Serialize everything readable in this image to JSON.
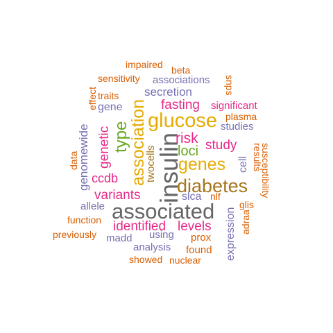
{
  "colors": {
    "orange": "#d95f02",
    "purple": "#7570b3",
    "magenta": "#e7298a",
    "green": "#66a61e",
    "gold": "#e6ab02",
    "brown": "#a6761d",
    "gray": "#666666"
  },
  "words": [
    {
      "text": "insulin",
      "color": "gray"
    },
    {
      "text": "associated",
      "color": "gray"
    },
    {
      "text": "diabetes",
      "color": "brown"
    },
    {
      "text": "glucose",
      "color": "gold"
    },
    {
      "text": "genes",
      "color": "gold"
    },
    {
      "text": "association",
      "color": "gold"
    },
    {
      "text": "type",
      "color": "green"
    },
    {
      "text": "loci",
      "color": "green"
    },
    {
      "text": "risk",
      "color": "magenta"
    },
    {
      "text": "fasting",
      "color": "magenta"
    },
    {
      "text": "variants",
      "color": "magenta"
    },
    {
      "text": "identified",
      "color": "magenta"
    },
    {
      "text": "levels",
      "color": "magenta"
    },
    {
      "text": "study",
      "color": "magenta"
    },
    {
      "text": "genetic",
      "color": "magenta"
    },
    {
      "text": "ccdb",
      "color": "magenta"
    },
    {
      "text": "significant",
      "color": "magenta"
    },
    {
      "text": "secretion",
      "color": "purple"
    },
    {
      "text": "associations",
      "color": "purple"
    },
    {
      "text": "gene",
      "color": "purple"
    },
    {
      "text": "studies",
      "color": "purple"
    },
    {
      "text": "genomewide",
      "color": "purple"
    },
    {
      "text": "allele",
      "color": "purple"
    },
    {
      "text": "slca",
      "color": "purple"
    },
    {
      "text": "madd",
      "color": "purple"
    },
    {
      "text": "using",
      "color": "purple"
    },
    {
      "text": "analysis",
      "color": "purple"
    },
    {
      "text": "expression",
      "color": "purple"
    },
    {
      "text": "cell",
      "color": "purple"
    },
    {
      "text": "twocells",
      "color": "brown"
    },
    {
      "text": "impaired",
      "color": "orange"
    },
    {
      "text": "beta",
      "color": "orange"
    },
    {
      "text": "sensitivity",
      "color": "orange"
    },
    {
      "text": "snps",
      "color": "orange"
    },
    {
      "text": "effect",
      "color": "orange"
    },
    {
      "text": "traits",
      "color": "orange"
    },
    {
      "text": "plasma",
      "color": "orange"
    },
    {
      "text": "data",
      "color": "orange"
    },
    {
      "text": "results",
      "color": "orange"
    },
    {
      "text": "susceptibility",
      "color": "orange"
    },
    {
      "text": "nlf",
      "color": "orange"
    },
    {
      "text": "glis",
      "color": "orange"
    },
    {
      "text": "prox",
      "color": "orange"
    },
    {
      "text": "function",
      "color": "orange"
    },
    {
      "text": "previously",
      "color": "orange"
    },
    {
      "text": "found",
      "color": "orange"
    },
    {
      "text": "showed",
      "color": "orange"
    },
    {
      "text": "nuclear",
      "color": "orange"
    },
    {
      "text": "adraa",
      "color": "orange"
    }
  ]
}
